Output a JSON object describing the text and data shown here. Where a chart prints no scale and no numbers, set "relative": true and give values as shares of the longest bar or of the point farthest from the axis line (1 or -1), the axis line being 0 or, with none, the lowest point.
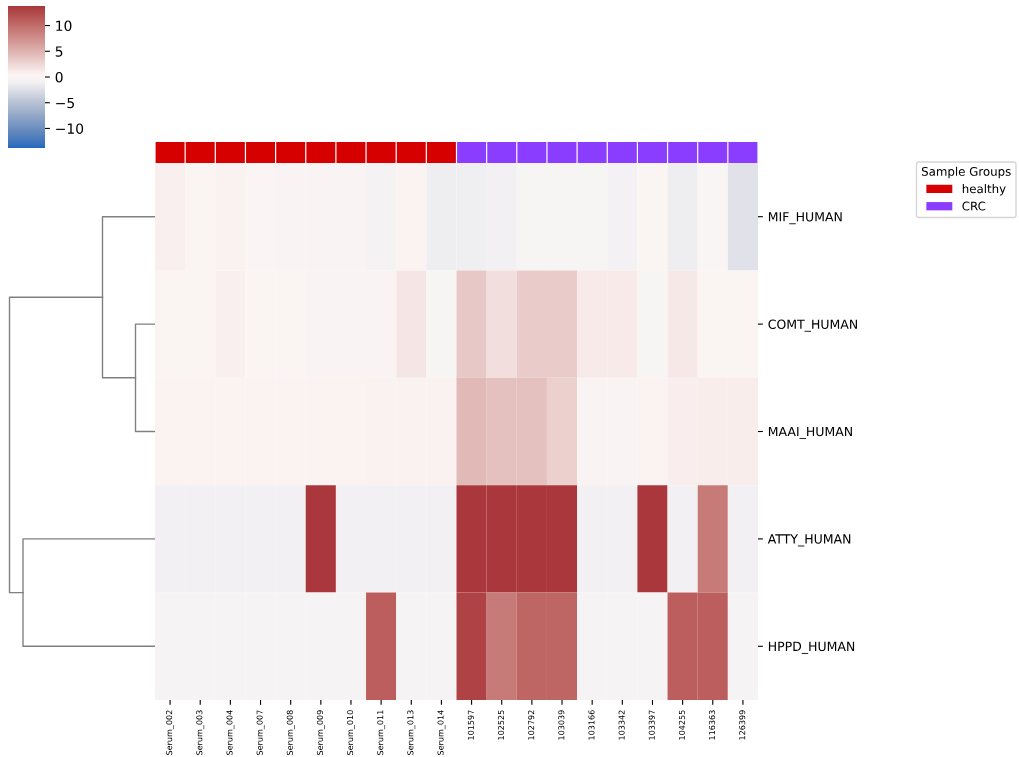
{
  "chart_data": [
    {
      "type": "heatmap",
      "categories": [
        "Serum_002",
        "Serum_003",
        "Serum_004",
        "Serum_007",
        "Serum_008",
        "Serum_009",
        "Serum_010",
        "Serum_011",
        "Serum_013",
        "Serum_014",
        "101597",
        "102525",
        "102792",
        "103039",
        "103166",
        "103342",
        "103397",
        "104255",
        "116363",
        "126399"
      ],
      "y_categories": [
        "MIF_HUMAN",
        "COMT_HUMAN",
        "MAAI_HUMAN",
        "ATTY_HUMAN",
        "HPPD_HUMAN"
      ],
      "cells": [
        [
          0.8,
          0.3,
          0.6,
          0.2,
          0.4,
          0.4,
          0.4,
          -0.8,
          0.5,
          -1.3,
          -1.2,
          -1.0,
          -0.6,
          -0.6,
          -0.6,
          -0.9,
          0.3,
          -1.4,
          -0.4,
          -2.2
        ],
        [
          0.3,
          0.3,
          0.8,
          0.3,
          0.3,
          0.4,
          0.4,
          0.4,
          1.6,
          -0.6,
          3.5,
          2.0,
          3.3,
          3.3,
          1.2,
          1.2,
          -0.6,
          1.3,
          0.3,
          0.3
        ],
        [
          0.5,
          0.5,
          0.5,
          0.5,
          0.5,
          0.5,
          0.5,
          0.6,
          0.6,
          0.6,
          4.5,
          4.0,
          4.0,
          3.0,
          0.4,
          0.4,
          0.5,
          0.9,
          1.0,
          1.0
        ],
        [
          -1.0,
          -1.0,
          -1.0,
          -1.0,
          -1.0,
          13.8,
          -1.0,
          -1.0,
          -1.0,
          -1.0,
          13.8,
          13.8,
          13.8,
          13.8,
          -1.0,
          -1.0,
          13.8,
          -1.0,
          9.0,
          -1.0
        ],
        [
          -0.7,
          -0.7,
          -0.7,
          -0.7,
          -0.7,
          -0.7,
          -0.7,
          11.0,
          -0.7,
          -0.7,
          13.0,
          9.0,
          10.5,
          10.5,
          -0.7,
          -0.7,
          -0.7,
          11.0,
          11.0,
          -0.7
        ]
      ],
      "clim": [
        -13.8,
        13.8
      ],
      "cticks": [
        {
          "value": -10,
          "label": "−10"
        },
        {
          "value": -5,
          "label": "−5"
        },
        0,
        5,
        10
      ]
    },
    {
      "type": "bar",
      "relative": true,
      "legend": "right",
      "legend_title": "Sample Groups",
      "categories": [
        null,
        null,
        null,
        null,
        null,
        null,
        null,
        null,
        null,
        null,
        null,
        null,
        null,
        null,
        null,
        null,
        null,
        null,
        null,
        null
      ],
      "series": [
        {
          "name": "healthy",
          "color": "#d60000",
          "values": [
            1,
            1,
            1,
            1,
            1,
            1,
            1,
            1,
            1,
            1,
            null,
            null,
            null,
            null,
            null,
            null,
            null,
            null,
            null,
            null
          ]
        },
        {
          "name": "CRC",
          "color": "#8b3dff",
          "values": [
            null,
            null,
            null,
            null,
            null,
            null,
            null,
            null,
            null,
            null,
            1,
            1,
            1,
            1,
            1,
            1,
            1,
            1,
            1,
            1
          ]
        }
      ]
    }
  ]
}
